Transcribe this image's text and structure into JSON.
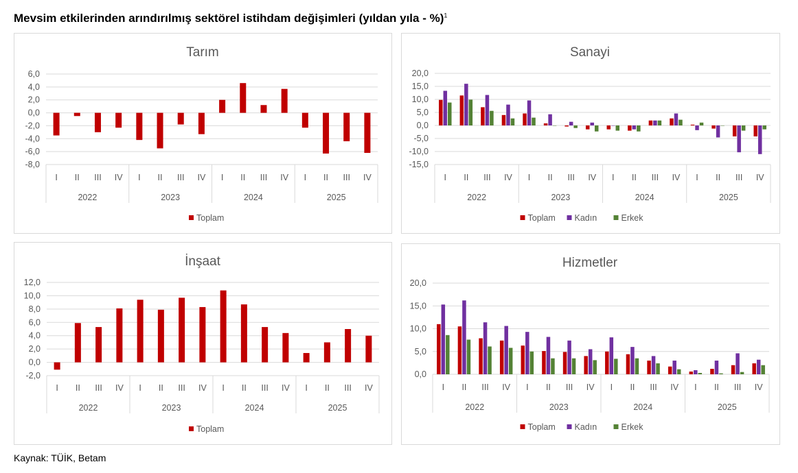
{
  "title": "Mevsim etkilerinden arındırılmış sektörel istihdam değişimleri (yıldan yıla - %)",
  "title_footnote": "1",
  "source": "Kaynak: TÜİK, Betam",
  "colors": {
    "Toplam": "#c00000",
    "Kadın": "#7030a0",
    "Erkek": "#548235"
  },
  "chart_data": [
    {
      "type": "bar",
      "title": "Tarım",
      "categories": [
        "I",
        "II",
        "III",
        "IV",
        "I",
        "II",
        "III",
        "IV",
        "I",
        "II",
        "III",
        "IV",
        "I",
        "II",
        "III",
        "IV"
      ],
      "groups": [
        "2022",
        "2023",
        "2024",
        "2025"
      ],
      "ylim": [
        -8,
        6
      ],
      "yticks": [
        "6,0",
        "4,0",
        "2,0",
        "0,0",
        "-2,0",
        "-4,0",
        "-6,0",
        "-8,0"
      ],
      "ytick_values": [
        6,
        4,
        2,
        0,
        -2,
        -4,
        -6,
        -8
      ],
      "grid": true,
      "legend": "bottom",
      "series": [
        {
          "name": "Toplam",
          "values": [
            -3.5,
            -0.5,
            -3.0,
            -2.3,
            -4.2,
            -5.5,
            -1.8,
            -3.3,
            2.0,
            4.6,
            1.2,
            3.7,
            -2.3,
            -6.3,
            -4.4,
            -6.2
          ]
        }
      ]
    },
    {
      "type": "bar",
      "title": "Sanayi",
      "categories": [
        "I",
        "II",
        "III",
        "IV",
        "I",
        "II",
        "III",
        "IV",
        "I",
        "II",
        "III",
        "IV",
        "I",
        "II",
        "III",
        "IV"
      ],
      "groups": [
        "2022",
        "2023",
        "2024",
        "2025"
      ],
      "ylim": [
        -15,
        20
      ],
      "yticks": [
        "20,0",
        "15,0",
        "10,0",
        "5,0",
        "0,0",
        "-5,0",
        "-10,0",
        "-15,0"
      ],
      "ytick_values": [
        20,
        15,
        10,
        5,
        0,
        -5,
        -10,
        -15
      ],
      "grid": true,
      "legend": "bottom",
      "series": [
        {
          "name": "Toplam",
          "values": [
            9.8,
            11.5,
            7.0,
            4.0,
            4.6,
            0.8,
            -0.4,
            -1.5,
            -1.5,
            -2.0,
            1.9,
            2.7,
            0.3,
            -1.2,
            -4.2,
            -4.2
          ]
        },
        {
          "name": "Kadın",
          "values": [
            13.3,
            16.0,
            11.7,
            8.0,
            9.6,
            4.3,
            1.4,
            1.1,
            0.0,
            -1.5,
            1.9,
            4.6,
            -1.8,
            -4.6,
            -10.3,
            -11.0
          ]
        },
        {
          "name": "Erkek",
          "values": [
            8.8,
            9.9,
            5.6,
            2.7,
            3.0,
            0.0,
            -1.0,
            -2.3,
            -2.0,
            -2.3,
            1.9,
            2.2,
            1.1,
            0.0,
            -2.0,
            -1.5
          ]
        }
      ]
    },
    {
      "type": "bar",
      "title": "İnşaat",
      "categories": [
        "I",
        "II",
        "III",
        "IV",
        "I",
        "II",
        "III",
        "IV",
        "I",
        "II",
        "III",
        "IV",
        "I",
        "II",
        "III",
        "IV"
      ],
      "groups": [
        "2022",
        "2023",
        "2024",
        "2025"
      ],
      "ylim": [
        -2,
        12
      ],
      "yticks": [
        "12,0",
        "10,0",
        "8,0",
        "6,0",
        "4,0",
        "2,0",
        "0,0",
        "-2,0"
      ],
      "ytick_values": [
        12,
        10,
        8,
        6,
        4,
        2,
        0,
        -2
      ],
      "grid": true,
      "legend": "bottom",
      "series": [
        {
          "name": "Toplam",
          "values": [
            -1.1,
            5.9,
            5.3,
            8.1,
            9.4,
            7.9,
            9.7,
            8.3,
            10.8,
            8.7,
            5.3,
            4.4,
            1.4,
            3.0,
            5.0,
            4.0
          ]
        }
      ]
    },
    {
      "type": "bar",
      "title": "Hizmetler",
      "categories": [
        "I",
        "II",
        "III",
        "IV",
        "I",
        "II",
        "III",
        "IV",
        "I",
        "II",
        "III",
        "IV",
        "I",
        "II",
        "III",
        "IV"
      ],
      "groups": [
        "2022",
        "2023",
        "2024",
        "2025"
      ],
      "ylim": [
        0,
        20
      ],
      "yticks": [
        "20,0",
        "15,0",
        "10,0",
        "5,0",
        "0,0"
      ],
      "ytick_values": [
        20,
        15,
        10,
        5,
        0
      ],
      "grid": true,
      "legend": "bottom",
      "series": [
        {
          "name": "Toplam",
          "values": [
            11.0,
            10.5,
            7.9,
            7.4,
            6.3,
            5.1,
            4.9,
            4.0,
            5.0,
            4.4,
            3.0,
            1.7,
            0.6,
            1.2,
            2.0,
            2.4
          ]
        },
        {
          "name": "Kadın",
          "values": [
            15.3,
            16.2,
            11.4,
            10.6,
            9.3,
            8.2,
            7.4,
            5.5,
            8.1,
            6.0,
            4.0,
            3.0,
            0.9,
            3.0,
            4.6,
            3.2
          ]
        },
        {
          "name": "Erkek",
          "values": [
            8.6,
            7.6,
            6.1,
            5.8,
            5.0,
            3.5,
            3.5,
            3.1,
            3.4,
            3.5,
            2.4,
            1.1,
            0.3,
            0.2,
            0.5,
            2.0
          ]
        }
      ]
    }
  ]
}
